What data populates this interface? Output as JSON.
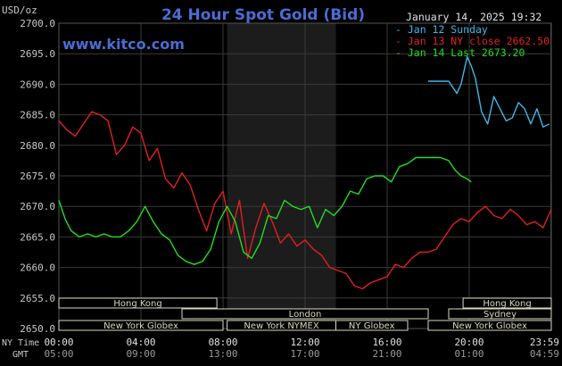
{
  "chart_data": {
    "type": "line",
    "title": "24 Hour Spot Gold (Bid)",
    "y_unit_label": "USD/oz",
    "source_url": "www.kitco.com",
    "timestamp": "January 14, 2025 19:32",
    "ylim": [
      2650.0,
      2700.0
    ],
    "y_ticks": [
      "2700.0",
      "2695.0",
      "2690.0",
      "2685.0",
      "2680.0",
      "2675.0",
      "2670.0",
      "2665.0",
      "2660.0",
      "2655.0",
      "2650.0"
    ],
    "x_tick_rows": {
      "ny_label": "NY Time",
      "gmt_label": "GMT",
      "ny": [
        "00:00",
        "04:00",
        "08:00",
        "12:00",
        "16:00",
        "20:00",
        "23:59"
      ],
      "gmt": [
        "05:00",
        "09:00",
        "13:00",
        "17:00",
        "21:00",
        "01:00",
        "04:59"
      ]
    },
    "x_unit": "hours (NY time)",
    "xlim": [
      0,
      24
    ],
    "legend_placement": "top-right",
    "series": [
      {
        "name": "Jan 12 Sunday",
        "color": "#3fb8e8",
        "x": [
          18.0,
          18.5,
          19.0,
          19.2,
          19.4,
          19.6,
          19.9,
          20.1,
          20.3,
          20.6,
          20.9,
          21.2,
          21.5,
          21.8,
          22.1,
          22.4,
          22.7,
          23.0,
          23.3,
          23.6,
          23.9
        ],
        "y": [
          2690.5,
          2690.5,
          2690.5,
          2689.5,
          2688.5,
          2690.0,
          2694.5,
          2693.0,
          2691.0,
          2685.5,
          2683.5,
          2688.0,
          2686.0,
          2684.0,
          2684.5,
          2687.0,
          2686.0,
          2683.5,
          2686.0,
          2683.0,
          2683.5
        ]
      },
      {
        "name": "Jan 13 NY close 2662.50",
        "color": "#e02020",
        "x": [
          0.0,
          0.4,
          0.8,
          1.2,
          1.6,
          2.0,
          2.4,
          2.8,
          3.2,
          3.6,
          4.0,
          4.4,
          4.8,
          5.2,
          5.6,
          6.0,
          6.4,
          6.8,
          7.2,
          7.6,
          8.0,
          8.4,
          8.8,
          9.2,
          9.6,
          10.0,
          10.4,
          10.8,
          11.2,
          11.6,
          12.0,
          12.4,
          12.8,
          13.2,
          13.6,
          14.0,
          14.4,
          14.8,
          15.2,
          15.6,
          16.0,
          16.4,
          16.8,
          17.2,
          17.6,
          18.0,
          18.4,
          18.8,
          19.2,
          19.6,
          20.0,
          20.4,
          20.8,
          21.2,
          21.6,
          22.0,
          22.4,
          22.8,
          23.2,
          23.6,
          23.99
        ],
        "y": [
          2684.0,
          2682.5,
          2681.5,
          2683.5,
          2685.5,
          2685.0,
          2684.0,
          2678.5,
          2680.0,
          2683.0,
          2682.0,
          2677.5,
          2679.5,
          2674.5,
          2673.0,
          2675.5,
          2673.5,
          2669.5,
          2666.0,
          2670.5,
          2672.5,
          2665.5,
          2671.0,
          2661.5,
          2666.5,
          2670.5,
          2667.5,
          2664.0,
          2665.5,
          2663.5,
          2664.5,
          2663.0,
          2662.0,
          2660.0,
          2659.5,
          2659.0,
          2657.0,
          2656.5,
          2657.5,
          2658.0,
          2658.5,
          2660.5,
          2660.0,
          2661.5,
          2662.5,
          2662.5,
          2663.0,
          2665.0,
          2667.0,
          2668.0,
          2667.5,
          2669.0,
          2670.0,
          2668.5,
          2668.0,
          2669.5,
          2668.5,
          2667.0,
          2667.5,
          2666.5,
          2669.5
        ]
      },
      {
        "name": "Jan 14 Last 2673.20",
        "color": "#22dd22",
        "x": [
          0.0,
          0.3,
          0.6,
          1.0,
          1.4,
          1.8,
          2.2,
          2.6,
          3.0,
          3.4,
          3.8,
          4.2,
          4.6,
          5.0,
          5.4,
          5.8,
          6.2,
          6.6,
          7.0,
          7.4,
          7.8,
          8.2,
          8.6,
          9.0,
          9.4,
          9.8,
          10.2,
          10.6,
          11.0,
          11.4,
          11.8,
          12.2,
          12.6,
          13.0,
          13.4,
          13.8,
          14.2,
          14.6,
          15.0,
          15.4,
          15.8,
          16.2,
          16.6,
          17.0,
          17.4,
          17.8,
          18.2,
          18.6,
          19.0,
          19.3,
          19.6,
          19.9,
          20.1
        ],
        "y": [
          2671.0,
          2668.0,
          2666.0,
          2665.0,
          2665.5,
          2665.0,
          2665.5,
          2665.0,
          2665.0,
          2666.0,
          2667.5,
          2670.0,
          2667.5,
          2665.5,
          2664.5,
          2662.0,
          2661.0,
          2660.5,
          2661.0,
          2663.0,
          2667.5,
          2670.0,
          2667.5,
          2662.5,
          2661.5,
          2664.0,
          2668.5,
          2668.0,
          2671.0,
          2670.0,
          2669.5,
          2670.0,
          2666.5,
          2669.5,
          2668.5,
          2670.0,
          2672.5,
          2672.0,
          2674.5,
          2675.0,
          2675.0,
          2674.0,
          2676.5,
          2677.0,
          2678.0,
          2678.0,
          2678.0,
          2678.0,
          2677.5,
          2676.0,
          2675.0,
          2674.5,
          2674.0
        ]
      }
    ],
    "session_bars": [
      {
        "label": "Hong Kong",
        "row": 0,
        "start": 0.0,
        "end": 7.7
      },
      {
        "label": "Hong Kong",
        "row": 0,
        "start": 19.7,
        "end": 24.0
      },
      {
        "label": "London",
        "row": 1,
        "start": 6.0,
        "end": 18.0
      },
      {
        "label": "Sydney",
        "row": 1,
        "start": 19.0,
        "end": 24.0
      },
      {
        "label": "New York Globex",
        "row": 2,
        "start": 0.0,
        "end": 8.0
      },
      {
        "label": "New York NYMEX",
        "row": 2,
        "start": 8.2,
        "end": 13.5
      },
      {
        "label": "NY Globex",
        "row": 2,
        "start": 13.5,
        "end": 17.0
      },
      {
        "label": "New York Globex",
        "row": 2,
        "start": 18.0,
        "end": 24.0
      }
    ],
    "shaded_session": {
      "start": 8.2,
      "end": 13.5
    },
    "grid": true
  },
  "colors": {
    "title": "#4a6cd4",
    "watermark": "#4a6cd4",
    "axis_text": "#c8c8c8",
    "grid": "#3a3a3a",
    "session_box": "#d8d8c0"
  }
}
